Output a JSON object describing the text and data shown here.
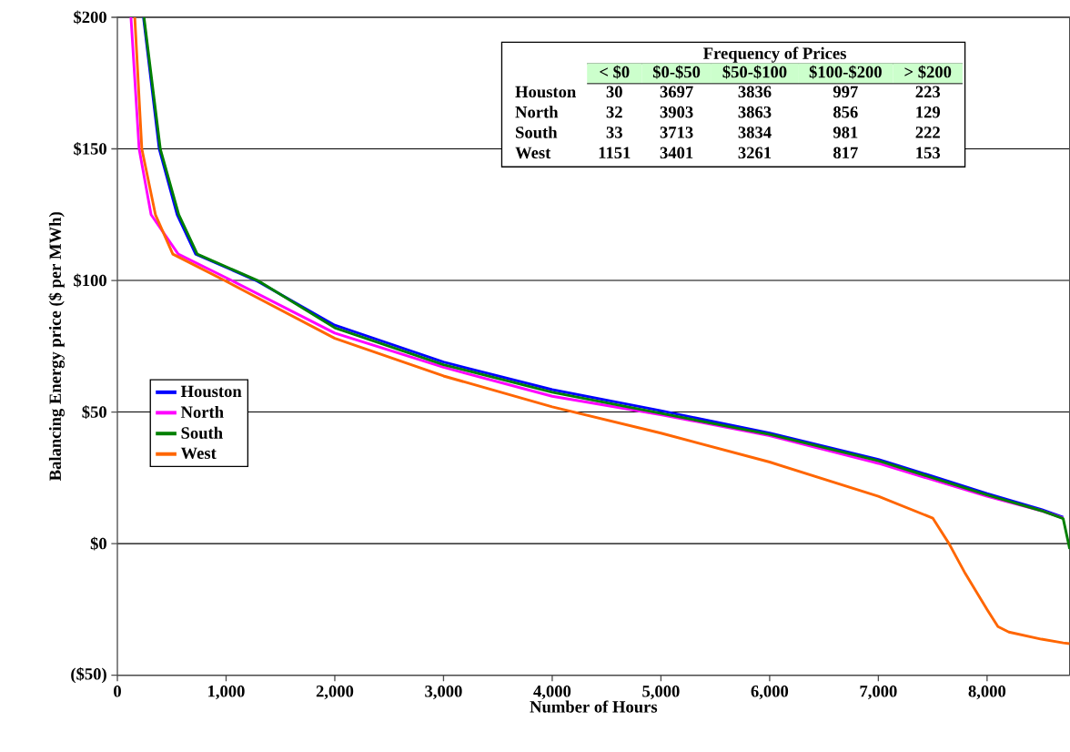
{
  "chart_data": {
    "type": "line",
    "xlabel": "Number of Hours",
    "ylabel": "Balancing Energy price ($ per MWh)",
    "xlim": [
      0,
      8760
    ],
    "ylim": [
      -50,
      200
    ],
    "xticks": [
      0,
      {
        "value": 1000,
        "label": "1,000"
      },
      {
        "value": 2000,
        "label": "2,000"
      },
      {
        "value": 3000,
        "label": "3,000"
      },
      {
        "value": 4000,
        "label": "4,000"
      },
      {
        "value": 5000,
        "label": "5,000"
      },
      {
        "value": 6000,
        "label": "6,000"
      },
      {
        "value": 7000,
        "label": "7,000"
      },
      {
        "value": 8000,
        "label": "8,000"
      }
    ],
    "yticks": [
      {
        "value": -50,
        "label": "($50)"
      },
      {
        "value": 0,
        "label": "$0"
      },
      {
        "value": 50,
        "label": "$50"
      },
      {
        "value": 100,
        "label": "$100"
      },
      {
        "value": 150,
        "label": "$150"
      },
      {
        "value": 200,
        "label": "$200"
      }
    ],
    "grid": "y",
    "legend": "left",
    "marker": "none",
    "line_style": "solid",
    "series": [
      {
        "name": "Houston",
        "color": "#0000ff",
        "x": [
          240,
          385,
          550,
          720,
          1275,
          2000,
          3000,
          4000,
          5000,
          6000,
          7000,
          7500,
          8000,
          8500,
          8700
        ],
        "values": [
          200,
          150,
          125,
          110,
          100,
          83,
          69,
          58.5,
          50.5,
          42,
          32,
          25.6,
          19,
          13,
          10
        ]
      },
      {
        "name": "North",
        "color": "#ff00ff",
        "x": [
          125,
          200,
          310,
          560,
          1050,
          2000,
          3000,
          4000,
          5000,
          6000,
          7000,
          8000,
          8500,
          8700
        ],
        "values": [
          200,
          150,
          125,
          110,
          100,
          80,
          67,
          56,
          49,
          41,
          30.5,
          18,
          12.5,
          9.7
        ]
      },
      {
        "name": "South",
        "color": "#008000",
        "x": [
          245,
          395,
          565,
          735,
          1290,
          2000,
          3000,
          4000,
          5000,
          6000,
          7000,
          7500,
          8000,
          8500,
          8700,
          8760
        ],
        "values": [
          200,
          150,
          125,
          110,
          100,
          82,
          68,
          57.5,
          49.5,
          41.5,
          31.5,
          25,
          18.5,
          12.5,
          9.5,
          -2
        ]
      },
      {
        "name": "West",
        "color": "#ff6600",
        "x": [
          160,
          225,
          350,
          510,
          985,
          2000,
          3000,
          4000,
          5000,
          6000,
          7000,
          7500,
          7650,
          7800,
          8000,
          8100,
          8200,
          8500,
          8700,
          8760
        ],
        "values": [
          200,
          150,
          125,
          110,
          100,
          78,
          63.7,
          52,
          42,
          31,
          18,
          9.7,
          0,
          -11.4,
          -25,
          -31.5,
          -33.6,
          -36.3,
          -37.7,
          -38
        ]
      }
    ],
    "annotations": [
      "Frequency of Prices",
      "< $0",
      "$0-$50",
      "$50-$100",
      "$100-$200",
      "> $200",
      "Houston",
      "30",
      "3697",
      "3836",
      "997",
      "223",
      "North",
      "32",
      "3903",
      "3863",
      "856",
      "129",
      "South",
      "33",
      "3713",
      "3834",
      "981",
      "222",
      "West",
      "1151",
      "3401",
      "3261",
      "817",
      "153"
    ]
  }
}
